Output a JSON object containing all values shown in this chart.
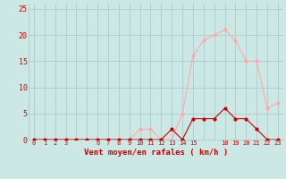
{
  "avg_wind": [
    0,
    0,
    0,
    0,
    0,
    0,
    0,
    0,
    0,
    0,
    0,
    0,
    0,
    2,
    0,
    4,
    4,
    4,
    6,
    4,
    4,
    2,
    0,
    0
  ],
  "gust_wind": [
    0,
    0,
    0,
    0,
    0,
    0,
    0,
    0,
    0,
    0,
    2,
    2,
    0,
    0,
    5,
    16,
    19,
    20,
    21,
    19,
    15,
    15,
    6,
    7
  ],
  "x_labels": [
    "0",
    "1",
    "2",
    "3",
    "",
    "",
    "6",
    "7",
    "8",
    "9",
    "10",
    "11",
    "12",
    "13",
    "14",
    "15",
    "",
    "",
    "18",
    "19",
    "20",
    "21",
    "22",
    "23"
  ],
  "xlabel": "Vent moyen/en rafales ( km/h )",
  "ylim": [
    0,
    26
  ],
  "xlim": [
    -0.5,
    23.5
  ],
  "yticks": [
    0,
    5,
    10,
    15,
    20,
    25
  ],
  "bg_color": "#cce8e4",
  "grid_color": "#aaccca",
  "avg_color": "#cc0000",
  "gust_color": "#ffaaaa",
  "xlabel_color": "#cc0000",
  "tick_color": "#cc0000"
}
